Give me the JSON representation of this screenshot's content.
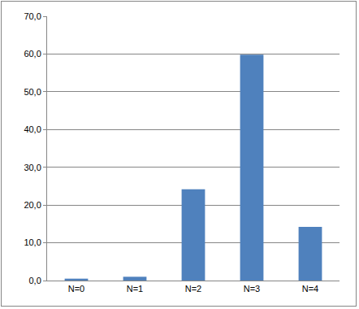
{
  "chart_data": {
    "type": "bar",
    "categories": [
      "N=0",
      "N=1",
      "N=2",
      "N=3",
      "N=4"
    ],
    "values": [
      0.5,
      1.0,
      24.2,
      59.8,
      14.2
    ],
    "color": "#4f81bd",
    "ylim": [
      0,
      70
    ],
    "yticks": [
      {
        "value": 0,
        "label": "0,0"
      },
      {
        "value": 10,
        "label": "10,0"
      },
      {
        "value": 20,
        "label": "20,0"
      },
      {
        "value": 30,
        "label": "30,0"
      },
      {
        "value": 40,
        "label": "40,0"
      },
      {
        "value": 50,
        "label": "50,0"
      },
      {
        "value": 60,
        "label": "60,0"
      },
      {
        "value": 70,
        "label": "70,0"
      }
    ],
    "grid": true
  }
}
